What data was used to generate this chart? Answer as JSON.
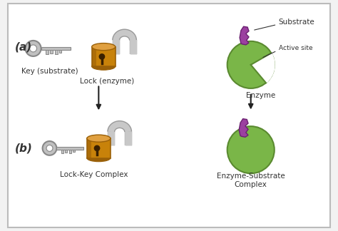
{
  "bg_color": "#f2f2f2",
  "border_color": "#bbbbbb",
  "lock_body_color": "#c8820a",
  "lock_body_dark": "#9a6008",
  "lock_body_light": "#e0a040",
  "lock_shackle_color": "#c8c8c8",
  "lock_shackle_dark": "#999999",
  "key_color": "#c0c0c0",
  "key_dark": "#888888",
  "enzyme_color": "#7ab648",
  "enzyme_dark": "#5a8a30",
  "substrate_color": "#9b3fa0",
  "substrate_dark": "#6a2070",
  "arrow_color": "#222222",
  "text_color": "#333333",
  "label_a": "(a)",
  "label_b": "(b)",
  "label_key": "Key (substrate)",
  "label_lock": "Lock (enzyme)",
  "label_lock_key": "Lock-Key Complex",
  "label_enzyme": "Enzyme",
  "label_substrate": "Substrate",
  "label_active_site": "Active site",
  "label_enzyme_substrate": "Enzyme-Substrate\nComplex",
  "figsize": [
    4.74,
    3.24
  ],
  "dpi": 100
}
